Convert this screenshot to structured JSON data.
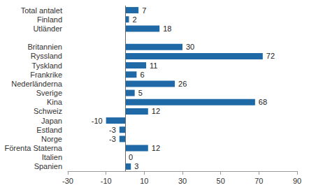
{
  "chart_data": {
    "type": "bar",
    "orientation": "horizontal",
    "categories": [
      "Total antalet",
      "Finland",
      "Utländer",
      null,
      "Britannien",
      "Ryssland",
      "Tyskland",
      "Frankrike",
      "Nederländerna",
      "Sverige",
      "Kina",
      "Schweiz",
      "Japan",
      "Estland",
      "Norge",
      "Förenta Staterna",
      "Italien",
      "Spanien"
    ],
    "values": [
      7,
      2,
      18,
      null,
      30,
      72,
      11,
      6,
      26,
      5,
      68,
      12,
      -10,
      -3,
      -3,
      12,
      0,
      3
    ],
    "color": "#1f6aa6",
    "xlim": [
      -30,
      90
    ],
    "xticks": [
      -30,
      -10,
      10,
      30,
      50,
      70,
      90
    ],
    "grid": false,
    "data_labels": true
  }
}
